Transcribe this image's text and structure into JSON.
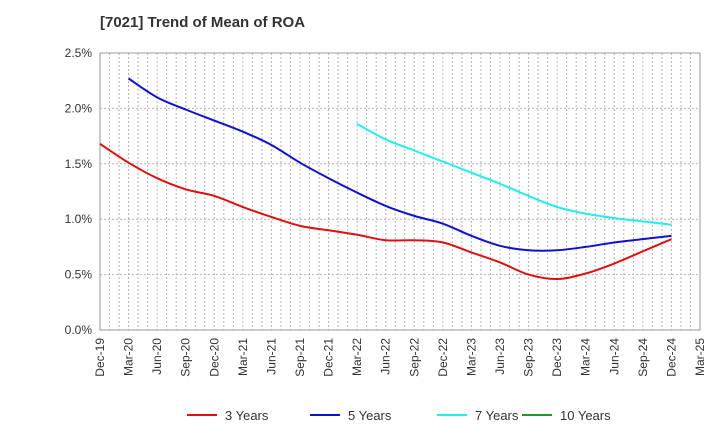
{
  "chart_data": {
    "type": "line",
    "title": "[7021]  Trend of Mean of ROA",
    "xlabel": "",
    "ylabel": "",
    "ylim": [
      0,
      2.5
    ],
    "y_ticks": [
      "0.0%",
      "0.5%",
      "1.0%",
      "1.5%",
      "2.0%",
      "2.5%"
    ],
    "y_tick_values": [
      0,
      0.5,
      1.0,
      1.5,
      2.0,
      2.5
    ],
    "x_ticks": [
      "Dec-19",
      "Mar-20",
      "Jun-20",
      "Sep-20",
      "Dec-20",
      "Mar-21",
      "Jun-21",
      "Sep-21",
      "Dec-21",
      "Mar-22",
      "Jun-22",
      "Sep-22",
      "Dec-22",
      "Mar-23",
      "Jun-23",
      "Sep-23",
      "Dec-23",
      "Mar-24",
      "Jun-24",
      "Sep-24",
      "Dec-24",
      "Mar-25"
    ],
    "grid": true,
    "legend_position": "bottom",
    "series": [
      {
        "name": "3 Years",
        "color": "#dd1111",
        "values": [
          1.68,
          1.51,
          1.37,
          1.27,
          1.21,
          1.11,
          1.02,
          0.94,
          0.9,
          0.86,
          0.81,
          0.81,
          0.79,
          0.7,
          0.61,
          0.5,
          0.46,
          0.51,
          0.6,
          0.71,
          0.82,
          null
        ]
      },
      {
        "name": "5 Years",
        "color": "#1111cc",
        "values": [
          null,
          2.27,
          2.1,
          1.99,
          1.89,
          1.79,
          1.67,
          1.51,
          1.37,
          1.24,
          1.12,
          1.03,
          0.96,
          0.85,
          0.76,
          0.72,
          0.72,
          0.75,
          0.79,
          0.82,
          0.85,
          null
        ]
      },
      {
        "name": "7 Years",
        "color": "#22eeee",
        "values": [
          null,
          null,
          null,
          null,
          null,
          null,
          null,
          null,
          null,
          1.86,
          1.72,
          1.62,
          1.52,
          1.42,
          1.32,
          1.21,
          1.11,
          1.05,
          1.01,
          0.98,
          0.95,
          null
        ]
      },
      {
        "name": "10 Years",
        "color": "#229922",
        "values": [
          null,
          null,
          null,
          null,
          null,
          null,
          null,
          null,
          null,
          null,
          null,
          null,
          null,
          null,
          null,
          null,
          null,
          null,
          null,
          null,
          null,
          null
        ]
      }
    ]
  }
}
